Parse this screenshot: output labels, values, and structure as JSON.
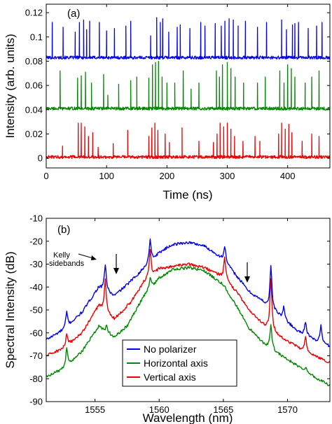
{
  "colors": {
    "blue": "#0000ee",
    "green": "#008800",
    "red": "#ee0000"
  },
  "chart_data": [
    {
      "type": "line",
      "panel_label": "(a)",
      "xlabel": "Time (ns)",
      "ylabel": "Intensity (arb. units)",
      "xlim": [
        0,
        470
      ],
      "ylim": [
        -0.008,
        0.127
      ],
      "xticks": [
        0,
        100,
        200,
        300,
        400
      ],
      "yticks": [
        0,
        0.02,
        0.04,
        0.06,
        0.08,
        0.1,
        0.12
      ],
      "ytick_labels": [
        "0",
        "0.02",
        "0.04",
        "0.06",
        "0.08",
        "0.1",
        "0.12"
      ],
      "series": [
        {
          "color": "blue",
          "baseline": 0.083,
          "pulses": [
            [
              10,
              0.112
            ],
            [
              28,
              0.108
            ],
            [
              48,
              0.104
            ],
            [
              55,
              0.112
            ],
            [
              62,
              0.114
            ],
            [
              67,
              0.106
            ],
            [
              72,
              0.113
            ],
            [
              88,
              0.112
            ],
            [
              100,
              0.105
            ],
            [
              113,
              0.107
            ],
            [
              132,
              0.109
            ],
            [
              140,
              0.113
            ],
            [
              173,
              0.101
            ],
            [
              183,
              0.116
            ],
            [
              189,
              0.112
            ],
            [
              193,
              0.115
            ],
            [
              203,
              0.104
            ],
            [
              217,
              0.108
            ],
            [
              222,
              0.11
            ],
            [
              238,
              0.107
            ],
            [
              256,
              0.112
            ],
            [
              263,
              0.109
            ],
            [
              280,
              0.111
            ],
            [
              290,
              0.109
            ],
            [
              296,
              0.113
            ],
            [
              303,
              0.115
            ],
            [
              310,
              0.114
            ],
            [
              318,
              0.109
            ],
            [
              330,
              0.113
            ],
            [
              350,
              0.108
            ],
            [
              365,
              0.112
            ],
            [
              390,
              0.114
            ],
            [
              398,
              0.106
            ],
            [
              408,
              0.11
            ],
            [
              412,
              0.111
            ],
            [
              418,
              0.112
            ],
            [
              434,
              0.107
            ],
            [
              448,
              0.109
            ],
            [
              457,
              0.112
            ]
          ]
        },
        {
          "color": "green",
          "baseline": 0.041,
          "pulses": [
            [
              23,
              0.072
            ],
            [
              52,
              0.066
            ],
            [
              58,
              0.068
            ],
            [
              65,
              0.071
            ],
            [
              75,
              0.062
            ],
            [
              95,
              0.069
            ],
            [
              102,
              0.052
            ],
            [
              120,
              0.061
            ],
            [
              140,
              0.064
            ],
            [
              150,
              0.067
            ],
            [
              170,
              0.066
            ],
            [
              176,
              0.077
            ],
            [
              181,
              0.079
            ],
            [
              186,
              0.08
            ],
            [
              192,
              0.067
            ],
            [
              200,
              0.062
            ],
            [
              213,
              0.062
            ],
            [
              227,
              0.072
            ],
            [
              240,
              0.057
            ],
            [
              253,
              0.062
            ],
            [
              282,
              0.072
            ],
            [
              287,
              0.067
            ],
            [
              292,
              0.077
            ],
            [
              300,
              0.079
            ],
            [
              306,
              0.074
            ],
            [
              313,
              0.067
            ],
            [
              327,
              0.062
            ],
            [
              350,
              0.062
            ],
            [
              363,
              0.067
            ],
            [
              387,
              0.072
            ],
            [
              394,
              0.062
            ],
            [
              400,
              0.077
            ],
            [
              406,
              0.074
            ],
            [
              412,
              0.067
            ],
            [
              429,
              0.062
            ],
            [
              440,
              0.067
            ],
            [
              452,
              0.072
            ]
          ]
        },
        {
          "color": "red",
          "baseline": 0.001,
          "pulses": [
            [
              27,
              0.01
            ],
            [
              53,
              0.029
            ],
            [
              58,
              0.029
            ],
            [
              64,
              0.026
            ],
            [
              70,
              0.018
            ],
            [
              77,
              0.021
            ],
            [
              86,
              0.009
            ],
            [
              111,
              0.012
            ],
            [
              135,
              0.023
            ],
            [
              170,
              0.018
            ],
            [
              175,
              0.025
            ],
            [
              180,
              0.029
            ],
            [
              185,
              0.023
            ],
            [
              197,
              0.02
            ],
            [
              204,
              0.013
            ],
            [
              225,
              0.025
            ],
            [
              253,
              0.014
            ],
            [
              277,
              0.013
            ],
            [
              283,
              0.02
            ],
            [
              288,
              0.029
            ],
            [
              294,
              0.026
            ],
            [
              300,
              0.029
            ],
            [
              306,
              0.024
            ],
            [
              312,
              0.018
            ],
            [
              326,
              0.014
            ],
            [
              346,
              0.018
            ],
            [
              354,
              0.014
            ],
            [
              385,
              0.02
            ],
            [
              390,
              0.029
            ],
            [
              396,
              0.024
            ],
            [
              402,
              0.028
            ],
            [
              407,
              0.021
            ],
            [
              424,
              0.014
            ],
            [
              440,
              0.02
            ],
            [
              452,
              0.018
            ]
          ]
        }
      ]
    },
    {
      "type": "line",
      "panel_label": "(b)",
      "xlabel": "Wavelength (nm)",
      "ylabel": "Spectral Intensity (dB)",
      "xlim": [
        1551.2,
        1573.3
      ],
      "ylim": [
        -90,
        -10
      ],
      "xticks": [
        1555,
        1560,
        1565,
        1570
      ],
      "yticks": [
        -90,
        -80,
        -70,
        -60,
        -50,
        -40,
        -30,
        -20,
        -10
      ],
      "legend": [
        "No polarizer",
        "Horizontal axis",
        "Vertical axis"
      ],
      "annotations": {
        "kelly": "Kelly\nsidebands"
      },
      "series": [
        {
          "name": "No polarizer",
          "color": "blue",
          "profile": [
            [
              1551.2,
              -63
            ],
            [
              1552.5,
              -59
            ],
            [
              1554,
              -51
            ],
            [
              1555.3,
              -40
            ],
            [
              1556.5,
              -44
            ],
            [
              1557.5,
              -39
            ],
            [
              1558.8,
              -32
            ],
            [
              1560,
              -25
            ],
            [
              1561,
              -21.5
            ],
            [
              1562.3,
              -20.5
            ],
            [
              1563.5,
              -22
            ],
            [
              1564.8,
              -27
            ],
            [
              1566,
              -35
            ],
            [
              1567,
              -42
            ],
            [
              1568,
              -46
            ],
            [
              1569.5,
              -53
            ],
            [
              1570.7,
              -59
            ],
            [
              1572,
              -63
            ],
            [
              1573.3,
              -66
            ]
          ],
          "peaks": [
            [
              1552.8,
              -51
            ],
            [
              1554.4,
              -57
            ],
            [
              1555.8,
              -30
            ],
            [
              1557.2,
              -42
            ],
            [
              1557.5,
              -40
            ],
            [
              1559.3,
              -19
            ],
            [
              1565.1,
              -22
            ],
            [
              1567.1,
              -44
            ],
            [
              1568.7,
              -31
            ],
            [
              1569.7,
              -49
            ],
            [
              1571.4,
              -55
            ],
            [
              1572.6,
              -57
            ]
          ]
        },
        {
          "name": "Horizontal axis",
          "color": "green",
          "profile": [
            [
              1551.2,
              -79
            ],
            [
              1552.5,
              -76
            ],
            [
              1554,
              -68
            ],
            [
              1555.3,
              -57
            ],
            [
              1556.5,
              -62
            ],
            [
              1557.5,
              -57
            ],
            [
              1558.8,
              -44
            ],
            [
              1560,
              -36
            ],
            [
              1561,
              -32.5
            ],
            [
              1562.3,
              -31.5
            ],
            [
              1563.5,
              -33
            ],
            [
              1564.8,
              -38
            ],
            [
              1566,
              -48
            ],
            [
              1567,
              -58
            ],
            [
              1568,
              -64
            ],
            [
              1569.5,
              -70
            ],
            [
              1570.7,
              -74
            ],
            [
              1572,
              -79
            ],
            [
              1573.3,
              -83
            ]
          ],
          "peaks": [
            [
              1552.8,
              -67
            ],
            [
              1555.9,
              -57
            ],
            [
              1557.6,
              -58
            ],
            [
              1559.3,
              -36
            ],
            [
              1565.1,
              -40
            ],
            [
              1568.7,
              -57
            ],
            [
              1571.4,
              -75
            ]
          ]
        },
        {
          "name": "Vertical axis",
          "color": "red",
          "profile": [
            [
              1551.2,
              -70
            ],
            [
              1552.5,
              -67
            ],
            [
              1554,
              -60
            ],
            [
              1555.3,
              -48
            ],
            [
              1556.5,
              -54
            ],
            [
              1557.5,
              -49
            ],
            [
              1558.8,
              -38
            ],
            [
              1560,
              -32
            ],
            [
              1561,
              -31
            ],
            [
              1562.3,
              -30
            ],
            [
              1563.5,
              -31.5
            ],
            [
              1564.8,
              -35
            ],
            [
              1566,
              -42
            ],
            [
              1567,
              -50
            ],
            [
              1568,
              -56
            ],
            [
              1569.5,
              -62
            ],
            [
              1570.7,
              -66
            ],
            [
              1572,
              -70
            ],
            [
              1573.3,
              -73
            ]
          ],
          "peaks": [
            [
              1552.8,
              -61
            ],
            [
              1555.8,
              -37
            ],
            [
              1557.6,
              -47
            ],
            [
              1559.3,
              -24
            ],
            [
              1565.1,
              -27
            ],
            [
              1568.7,
              -36
            ],
            [
              1571.4,
              -62
            ]
          ]
        }
      ]
    }
  ]
}
